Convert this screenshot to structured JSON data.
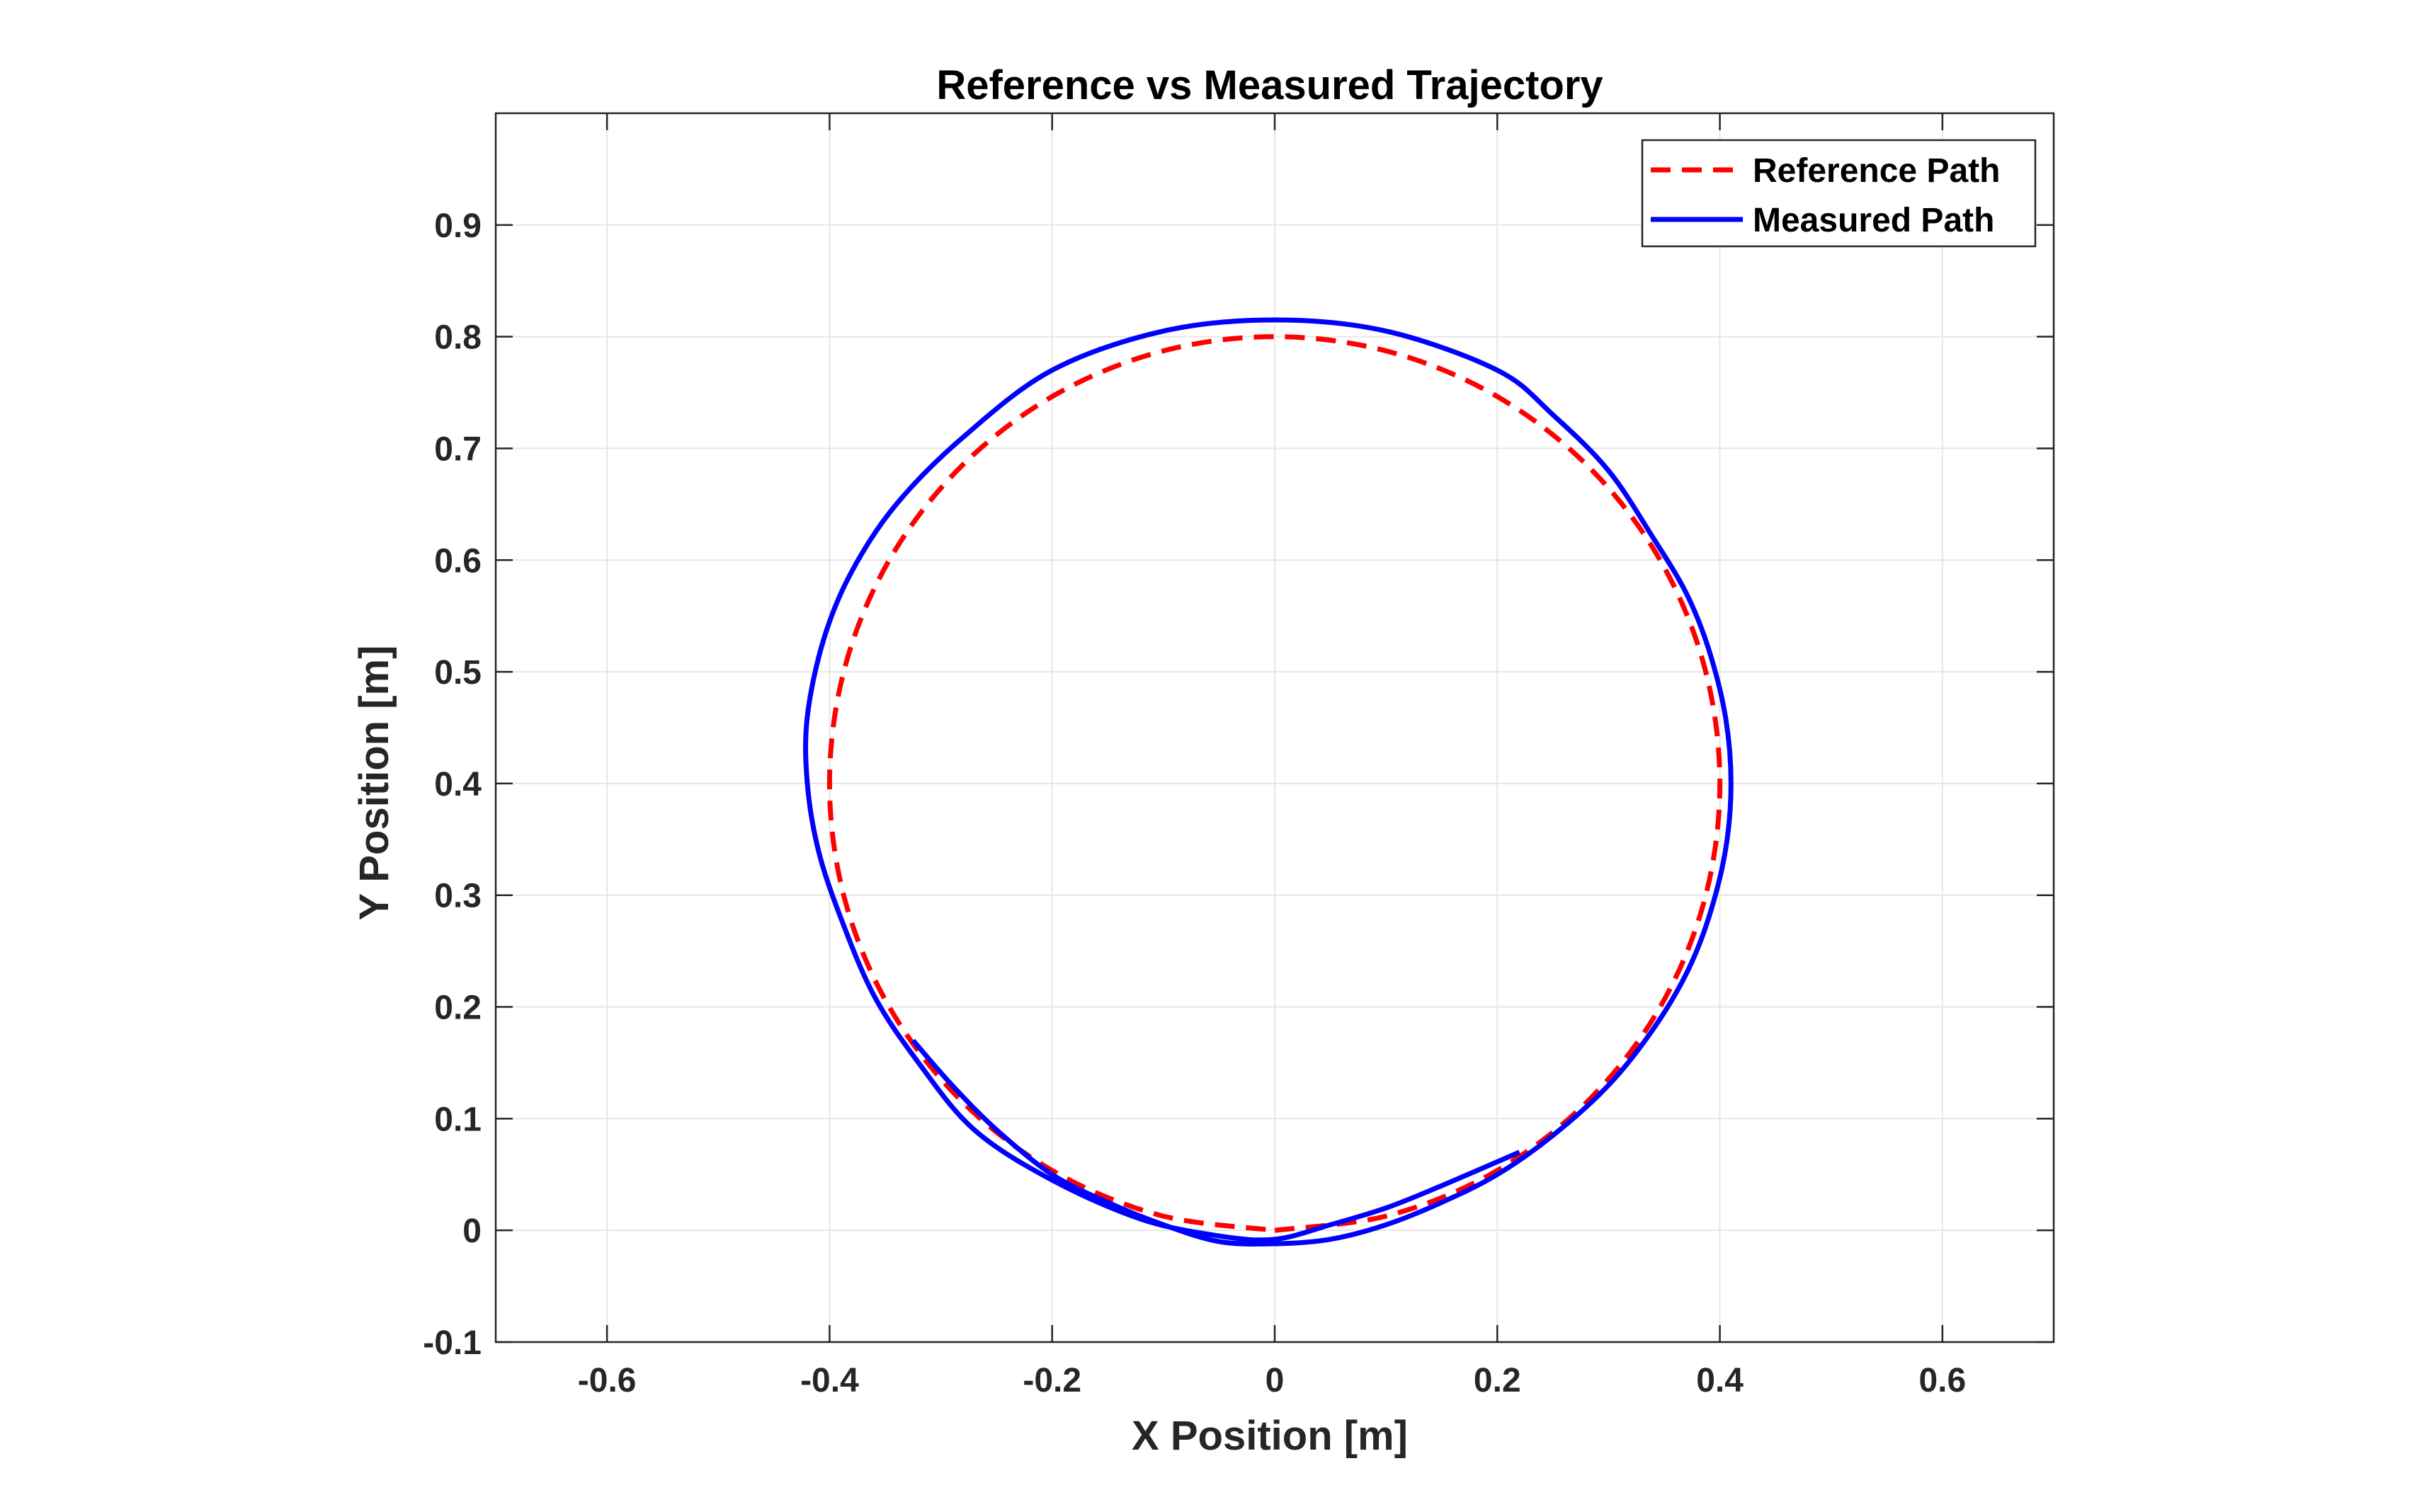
{
  "chart_data": {
    "type": "line",
    "title": "Reference vs Measured Trajectory",
    "xlabel": "X Position [m]",
    "ylabel": "Y Position [m]",
    "xlim": [
      -0.7,
      0.7
    ],
    "ylim": [
      -0.1,
      1.0
    ],
    "xticks": [
      -0.6,
      -0.4,
      -0.2,
      0,
      0.2,
      0.4,
      0.6
    ],
    "xtick_labels": [
      "-0.6",
      "-0.4",
      "-0.2",
      "0",
      "0.2",
      "0.4",
      "0.6"
    ],
    "yticks": [
      -0.1,
      0,
      0.1,
      0.2,
      0.3,
      0.4,
      0.5,
      0.6,
      0.7,
      0.8,
      0.9
    ],
    "ytick_labels": [
      "-0.1",
      "0",
      "0.1",
      "0.2",
      "0.3",
      "0.4",
      "0.5",
      "0.6",
      "0.7",
      "0.8",
      "0.9"
    ],
    "grid": true,
    "legend_position": "top-right",
    "series": [
      {
        "name": "Reference Path",
        "color": "#ff0000",
        "style": "dashed",
        "x": [
          0,
          0.1035,
          0.2,
          0.2828,
          0.3464,
          0.3864,
          0.4,
          0.3864,
          0.3464,
          0.2828,
          0.2,
          0.1035,
          0,
          -0.1035,
          -0.2,
          -0.2828,
          -0.3464,
          -0.3864,
          -0.4,
          -0.3864,
          -0.3464,
          -0.2828,
          -0.2,
          -0.1035,
          0
        ],
        "y": [
          0,
          0.0136,
          0.0536,
          0.1172,
          0.2,
          0.2965,
          0.4,
          0.5035,
          0.6,
          0.6828,
          0.7464,
          0.7864,
          0.8,
          0.7864,
          0.7464,
          0.6828,
          0.6,
          0.5035,
          0.4,
          0.2965,
          0.2,
          0.1172,
          0.0536,
          0.0136,
          0
        ]
      },
      {
        "name": "Measured Path",
        "color": "#0000ff",
        "style": "solid",
        "x": [
          -0.325,
          -0.29,
          -0.25,
          -0.2,
          -0.15,
          -0.1,
          -0.05,
          0,
          0.05,
          0.1,
          0.15,
          0.2,
          0.25,
          0.3,
          0.34,
          0.37,
          0.39,
          0.405,
          0.41,
          0.405,
          0.39,
          0.37,
          0.34,
          0.3,
          0.25,
          0.2,
          0.1,
          0,
          -0.1,
          -0.2,
          -0.28,
          -0.34,
          -0.38,
          -0.405,
          -0.42,
          -0.42,
          -0.41,
          -0.39,
          -0.36,
          -0.32,
          -0.27,
          -0.2,
          -0.12,
          -0.05,
          0,
          0.05,
          0.1,
          0.15,
          0.22
        ],
        "y": [
          0.17,
          0.13,
          0.09,
          0.05,
          0.025,
          0.005,
          -0.01,
          -0.012,
          -0.008,
          0.005,
          0.025,
          0.05,
          0.085,
          0.13,
          0.18,
          0.23,
          0.28,
          0.34,
          0.4,
          0.46,
          0.52,
          0.57,
          0.62,
          0.68,
          0.73,
          0.77,
          0.805,
          0.815,
          0.805,
          0.77,
          0.71,
          0.65,
          0.59,
          0.53,
          0.46,
          0.4,
          0.34,
          0.28,
          0.21,
          0.15,
          0.09,
          0.045,
          0.01,
          -0.005,
          -0.008,
          0.005,
          0.02,
          0.04,
          0.07
        ]
      }
    ]
  }
}
